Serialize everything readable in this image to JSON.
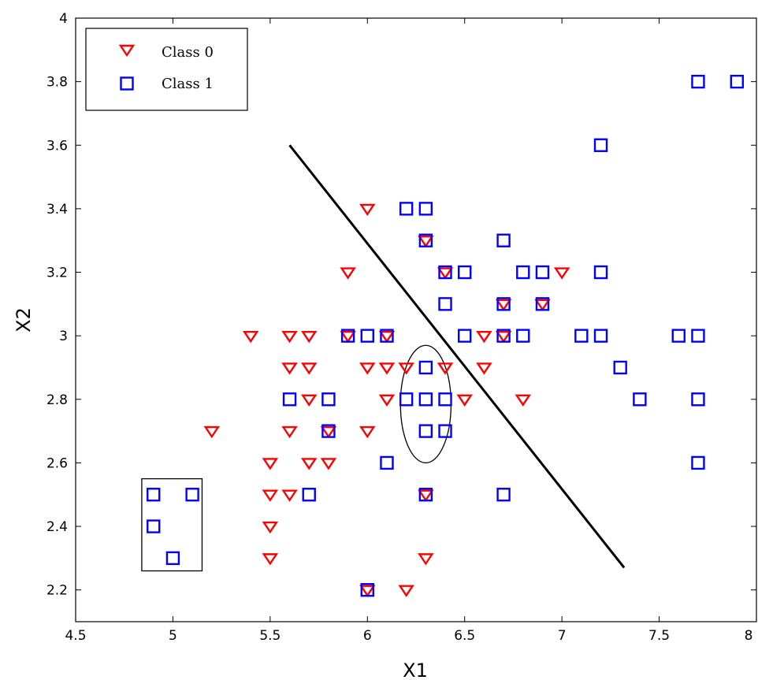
{
  "chart_data": {
    "type": "scatter",
    "title": "",
    "xlabel": "X1",
    "ylabel": "X2",
    "xlim": [
      4.5,
      8
    ],
    "ylim": [
      2.1,
      4
    ],
    "xticks": [
      "4.5",
      "5",
      "5.5",
      "6",
      "6.5",
      "7",
      "7.5",
      "8"
    ],
    "yticks": [
      "2.2",
      "2.4",
      "2.6",
      "2.8",
      "3",
      "3.2",
      "3.4",
      "3.6",
      "3.8",
      "4"
    ],
    "grid": false,
    "legend_position": "top-left",
    "series": [
      {
        "name": "Class 0",
        "marker": "triangle-down",
        "color": "#ff0000",
        "points": [
          [
            6.0,
            3.4
          ],
          [
            6.3,
            3.3
          ],
          [
            5.9,
            3.2
          ],
          [
            6.4,
            3.2
          ],
          [
            7.0,
            3.2
          ],
          [
            6.7,
            3.1
          ],
          [
            6.9,
            3.1
          ],
          [
            5.4,
            3.0
          ],
          [
            5.6,
            3.0
          ],
          [
            5.7,
            3.0
          ],
          [
            5.9,
            3.0
          ],
          [
            6.1,
            3.0
          ],
          [
            6.6,
            3.0
          ],
          [
            6.7,
            3.0
          ],
          [
            5.6,
            2.9
          ],
          [
            5.7,
            2.9
          ],
          [
            6.0,
            2.9
          ],
          [
            6.1,
            2.9
          ],
          [
            6.2,
            2.9
          ],
          [
            6.4,
            2.9
          ],
          [
            6.6,
            2.9
          ],
          [
            5.7,
            2.8
          ],
          [
            6.1,
            2.8
          ],
          [
            6.5,
            2.8
          ],
          [
            6.8,
            2.8
          ],
          [
            5.2,
            2.7
          ],
          [
            5.6,
            2.7
          ],
          [
            5.8,
            2.7
          ],
          [
            6.0,
            2.7
          ],
          [
            5.5,
            2.6
          ],
          [
            5.7,
            2.6
          ],
          [
            5.8,
            2.6
          ],
          [
            5.5,
            2.5
          ],
          [
            5.6,
            2.5
          ],
          [
            6.3,
            2.5
          ],
          [
            5.5,
            2.4
          ],
          [
            5.5,
            2.3
          ],
          [
            6.3,
            2.3
          ],
          [
            6.0,
            2.2
          ],
          [
            6.2,
            2.2
          ]
        ]
      },
      {
        "name": "Class 1",
        "marker": "square",
        "color": "#0000ff",
        "points": [
          [
            7.7,
            3.8
          ],
          [
            7.9,
            3.8
          ],
          [
            7.2,
            3.6
          ],
          [
            6.2,
            3.4
          ],
          [
            6.3,
            3.4
          ],
          [
            6.3,
            3.3
          ],
          [
            6.7,
            3.3
          ],
          [
            6.4,
            3.2
          ],
          [
            6.5,
            3.2
          ],
          [
            6.8,
            3.2
          ],
          [
            6.9,
            3.2
          ],
          [
            7.2,
            3.2
          ],
          [
            6.4,
            3.1
          ],
          [
            6.7,
            3.1
          ],
          [
            6.9,
            3.1
          ],
          [
            5.9,
            3.0
          ],
          [
            6.0,
            3.0
          ],
          [
            6.1,
            3.0
          ],
          [
            6.5,
            3.0
          ],
          [
            6.7,
            3.0
          ],
          [
            6.8,
            3.0
          ],
          [
            7.1,
            3.0
          ],
          [
            7.2,
            3.0
          ],
          [
            7.6,
            3.0
          ],
          [
            7.7,
            3.0
          ],
          [
            6.3,
            2.9
          ],
          [
            7.3,
            2.9
          ],
          [
            5.6,
            2.8
          ],
          [
            5.8,
            2.8
          ],
          [
            6.2,
            2.8
          ],
          [
            6.3,
            2.8
          ],
          [
            6.4,
            2.8
          ],
          [
            7.4,
            2.8
          ],
          [
            7.7,
            2.8
          ],
          [
            5.8,
            2.7
          ],
          [
            6.3,
            2.7
          ],
          [
            6.4,
            2.7
          ],
          [
            6.1,
            2.6
          ],
          [
            7.7,
            2.6
          ],
          [
            4.9,
            2.5
          ],
          [
            5.1,
            2.5
          ],
          [
            5.7,
            2.5
          ],
          [
            6.3,
            2.5
          ],
          [
            6.7,
            2.5
          ],
          [
            4.9,
            2.4
          ],
          [
            5.0,
            2.3
          ],
          [
            6.0,
            2.2
          ]
        ]
      }
    ],
    "annotations": [
      {
        "type": "line",
        "color": "#000000",
        "from": [
          5.6,
          3.6
        ],
        "to": [
          7.32,
          2.27
        ]
      },
      {
        "type": "ellipse",
        "color": "#000000",
        "center": [
          6.3,
          2.785
        ],
        "radii": [
          0.13,
          0.185
        ]
      },
      {
        "type": "rectangle",
        "color": "#000000",
        "x_range": [
          4.84,
          5.15
        ],
        "y_range": [
          2.26,
          2.55
        ]
      }
    ]
  }
}
